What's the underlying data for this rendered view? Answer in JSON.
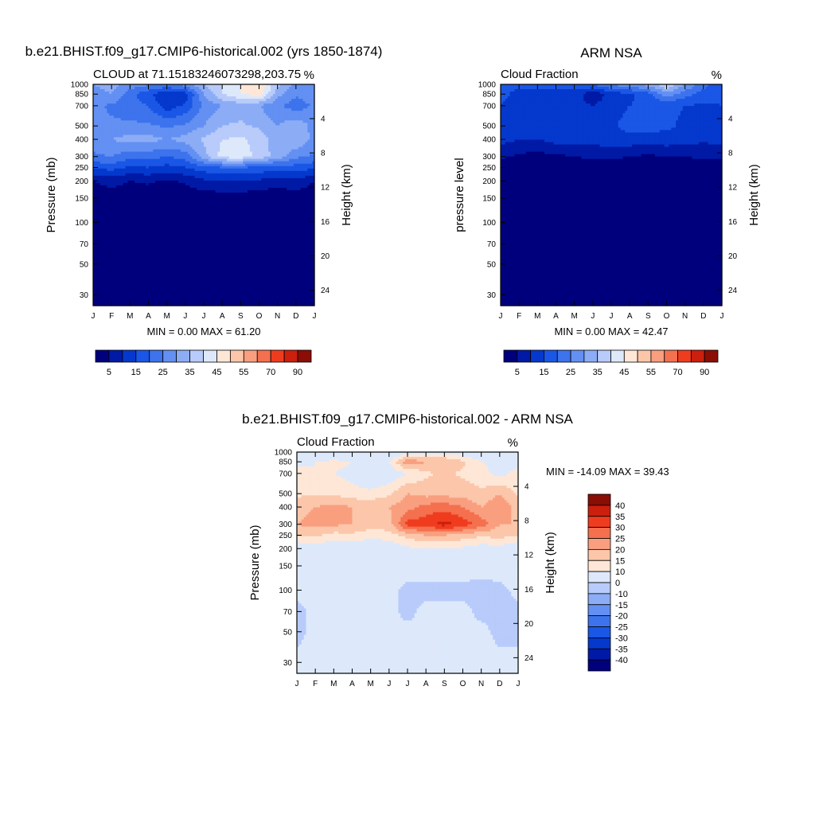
{
  "panels": [
    {
      "title": "b.e21.BHIST.f09_g17.CMIP6-historical.002 (yrs 1850-1874)",
      "left_label": "CLOUD at 71.15183246073298,203.75",
      "right_label": "%",
      "ylabel": "Pressure (mb)",
      "y2label": "Height (km)",
      "stats": "MIN =   0.00 MAX =  61.20"
    },
    {
      "title": "ARM NSA",
      "left_label": "Cloud Fraction",
      "right_label": "%",
      "ylabel": "pressure level",
      "y2label": "Height (km)",
      "stats": "MIN =   0.00 MAX =  42.47"
    },
    {
      "title": "b.e21.BHIST.f09_g17.CMIP6-historical.002 - ARM NSA",
      "left_label": "Cloud Fraction",
      "right_label": "%",
      "ylabel": "Pressure (mb)",
      "y2label": "Height (km)",
      "stats": "MIN = -14.09 MAX =  39.43"
    }
  ],
  "chart_data": [
    {
      "type": "heatmap",
      "title": "b.e21.BHIST.f09_g17.CMIP6-historical.002 (yrs 1850-1874)",
      "subtitle": "CLOUD at 71.15183246073298,203.75",
      "ylabel": "Pressure (mb)",
      "y2label": "Height (km)",
      "unit": "%",
      "x": [
        "J",
        "F",
        "M",
        "A",
        "M",
        "J",
        "J",
        "A",
        "S",
        "O",
        "N",
        "D",
        "J"
      ],
      "y_pressure": [
        1000,
        850,
        700,
        500,
        400,
        300,
        250,
        200,
        150,
        100,
        70,
        50,
        30
      ],
      "y_height_ticks": [
        4,
        8,
        12,
        16,
        20,
        24
      ],
      "values": [
        [
          30,
          32,
          28,
          26,
          25,
          27,
          35,
          40,
          45,
          50,
          36,
          28,
          30
        ],
        [
          28,
          30,
          22,
          16,
          10,
          12,
          30,
          40,
          45,
          48,
          32,
          26,
          28
        ],
        [
          26,
          24,
          22,
          20,
          12,
          16,
          26,
          30,
          32,
          30,
          26,
          22,
          26
        ],
        [
          28,
          26,
          26,
          26,
          24,
          26,
          30,
          35,
          36,
          34,
          30,
          34,
          28
        ],
        [
          28,
          30,
          32,
          32,
          30,
          32,
          36,
          40,
          41,
          38,
          32,
          35,
          28
        ],
        [
          24,
          25,
          22,
          22,
          20,
          22,
          33,
          42,
          43,
          38,
          33,
          26,
          24
        ],
        [
          16,
          17,
          14,
          15,
          13,
          15,
          18,
          20,
          20,
          19,
          17,
          18,
          16
        ],
        [
          5,
          7,
          5,
          6,
          4,
          6,
          9,
          10,
          10,
          9,
          7,
          9,
          5
        ],
        [
          1,
          2,
          1,
          1,
          1,
          1,
          2,
          2,
          2,
          2,
          1,
          2,
          1
        ],
        [
          0,
          0,
          0,
          0,
          0,
          0,
          0,
          0,
          0,
          0,
          0,
          0,
          0
        ],
        [
          0,
          0,
          0,
          0,
          0,
          0,
          0,
          0,
          0,
          0,
          0,
          0,
          0
        ],
        [
          0,
          0,
          0,
          0,
          0,
          0,
          0,
          0,
          0,
          0,
          0,
          0,
          0
        ],
        [
          0,
          0,
          0,
          0,
          0,
          0,
          0,
          0,
          0,
          0,
          0,
          0,
          0
        ]
      ],
      "min": 0.0,
      "max": 61.2,
      "levels": [
        5,
        10,
        15,
        20,
        25,
        30,
        35,
        40,
        45,
        50,
        55,
        60,
        70,
        80,
        90
      ],
      "colorbar_labels": [
        "5",
        "15",
        "25",
        "35",
        "45",
        "55",
        "70",
        "90"
      ],
      "colors": [
        "#00007d",
        "#001aa6",
        "#0538cc",
        "#1a57e6",
        "#3d73ec",
        "#6390f2",
        "#8cadf6",
        "#b8cbfa",
        "#dde9fb",
        "#fee7d6",
        "#fbc6aa",
        "#f99f7f",
        "#f4704f",
        "#f03c1e",
        "#cc1f0d",
        "#8a0e06"
      ]
    },
    {
      "type": "heatmap",
      "title": "ARM NSA",
      "subtitle": "Cloud Fraction",
      "ylabel": "pressure level",
      "y2label": "Height (km)",
      "unit": "%",
      "x": [
        "J",
        "F",
        "M",
        "A",
        "M",
        "J",
        "J",
        "A",
        "S",
        "O",
        "N",
        "D",
        "J"
      ],
      "y_pressure": [
        1000,
        850,
        700,
        500,
        400,
        300,
        250,
        200,
        150,
        100,
        70,
        50,
        30
      ],
      "y_height_ticks": [
        4,
        8,
        12,
        16,
        20,
        24
      ],
      "values": [
        [
          15,
          16,
          18,
          17,
          18,
          20,
          26,
          28,
          32,
          40,
          30,
          22,
          15
        ],
        [
          16,
          14,
          13,
          12,
          13,
          6,
          12,
          14,
          18,
          28,
          22,
          18,
          16
        ],
        [
          15,
          13,
          12,
          14,
          12,
          10,
          13,
          15,
          16,
          16,
          15,
          14,
          15
        ],
        [
          14,
          12,
          12,
          15,
          13,
          12,
          14,
          17,
          17,
          16,
          14,
          13,
          14
        ],
        [
          12,
          10,
          10,
          12,
          12,
          12,
          13,
          13,
          13,
          13,
          12,
          11,
          12
        ],
        [
          6,
          4,
          3,
          4,
          5,
          6,
          6,
          5,
          4,
          5,
          5,
          6,
          6
        ],
        [
          1,
          1,
          1,
          1,
          1,
          2,
          2,
          1,
          1,
          1,
          1,
          2,
          1
        ],
        [
          0,
          0,
          0,
          0,
          0,
          0,
          0,
          0,
          0,
          0,
          0,
          0,
          0
        ],
        [
          0,
          0,
          0,
          0,
          0,
          0,
          0,
          0,
          0,
          0,
          0,
          0,
          0
        ],
        [
          0,
          0,
          0,
          0,
          0,
          0,
          0,
          0,
          0,
          0,
          0,
          0,
          0
        ],
        [
          0,
          0,
          0,
          0,
          0,
          0,
          0,
          0,
          0,
          0,
          0,
          0,
          0
        ],
        [
          0,
          0,
          0,
          0,
          0,
          0,
          0,
          0,
          0,
          0,
          0,
          0,
          0
        ],
        [
          0,
          0,
          0,
          0,
          0,
          0,
          0,
          0,
          0,
          0,
          0,
          0,
          0
        ]
      ],
      "min": 0.0,
      "max": 42.47,
      "levels": [
        5,
        10,
        15,
        20,
        25,
        30,
        35,
        40,
        45,
        50,
        55,
        60,
        70,
        80,
        90
      ],
      "colorbar_labels": [
        "5",
        "15",
        "25",
        "35",
        "45",
        "55",
        "70",
        "90"
      ],
      "colors": [
        "#00007d",
        "#001aa6",
        "#0538cc",
        "#1a57e6",
        "#3d73ec",
        "#6390f2",
        "#8cadf6",
        "#b8cbfa",
        "#dde9fb",
        "#fee7d6",
        "#fbc6aa",
        "#f99f7f",
        "#f4704f",
        "#f03c1e",
        "#cc1f0d",
        "#8a0e06"
      ]
    },
    {
      "type": "heatmap",
      "title": "b.e21.BHIST.f09_g17.CMIP6-historical.002 - ARM NSA",
      "subtitle": "Cloud Fraction",
      "ylabel": "Pressure (mb)",
      "y2label": "Height (km)",
      "unit": "%",
      "x": [
        "J",
        "F",
        "M",
        "A",
        "M",
        "J",
        "J",
        "A",
        "S",
        "O",
        "N",
        "D",
        "J"
      ],
      "y_pressure": [
        1000,
        850,
        700,
        500,
        400,
        300,
        250,
        200,
        150,
        100,
        70,
        50,
        30
      ],
      "y_height_ticks": [
        4,
        8,
        12,
        16,
        20,
        24
      ],
      "values": [
        [
          3,
          2,
          0,
          -1,
          0,
          3,
          6,
          8,
          8,
          6,
          4,
          3,
          3
        ],
        [
          8,
          10,
          12,
          10,
          4,
          10,
          24,
          20,
          20,
          16,
          10,
          8,
          8
        ],
        [
          12,
          10,
          10,
          8,
          2,
          6,
          10,
          14,
          16,
          14,
          12,
          8,
          12
        ],
        [
          14,
          14,
          14,
          12,
          12,
          14,
          20,
          18,
          18,
          18,
          16,
          20,
          14
        ],
        [
          18,
          20,
          22,
          20,
          18,
          20,
          23,
          27,
          28,
          25,
          20,
          24,
          18
        ],
        [
          20,
          22,
          21,
          20,
          17,
          18,
          32,
          33,
          37,
          33,
          28,
          20,
          20
        ],
        [
          15,
          16,
          13,
          14,
          12,
          13,
          17,
          20,
          20,
          18,
          16,
          17,
          15
        ],
        [
          5,
          7,
          5,
          6,
          4,
          6,
          9,
          10,
          10,
          9,
          7,
          8,
          5
        ],
        [
          1,
          2,
          1,
          1,
          1,
          1,
          2,
          2,
          2,
          2,
          1,
          2,
          1
        ],
        [
          1,
          1,
          1,
          1,
          1,
          1,
          -1,
          -1,
          -1,
          -1,
          -1,
          -1,
          1
        ],
        [
          -1,
          1,
          1,
          1,
          1,
          1,
          -1,
          1,
          1,
          1,
          -1,
          -1,
          -1
        ],
        [
          -1,
          1,
          1,
          1,
          1,
          1,
          1,
          1,
          1,
          1,
          1,
          -1,
          -1
        ],
        [
          1,
          1,
          1,
          1,
          1,
          1,
          1,
          1,
          1,
          1,
          1,
          1,
          1
        ]
      ],
      "min": -14.09,
      "max": 39.43,
      "levels": [
        -40,
        -35,
        -30,
        -25,
        -20,
        -15,
        -10,
        0,
        10,
        15,
        20,
        25,
        30,
        35,
        40
      ],
      "colorbar_labels": [
        "40",
        "35",
        "30",
        "25",
        "20",
        "15",
        "10",
        "0",
        "-10",
        "-15",
        "-20",
        "-25",
        "-30",
        "-35",
        "-40"
      ],
      "colors": [
        "#00007d",
        "#001aa6",
        "#0538cc",
        "#1a57e6",
        "#3d73ec",
        "#6390f2",
        "#8cadf6",
        "#b8cbfa",
        "#dde9fb",
        "#fee7d6",
        "#fbc6aa",
        "#f99f7f",
        "#f4704f",
        "#f03c1e",
        "#cc1f0d",
        "#8a0e06"
      ]
    }
  ]
}
